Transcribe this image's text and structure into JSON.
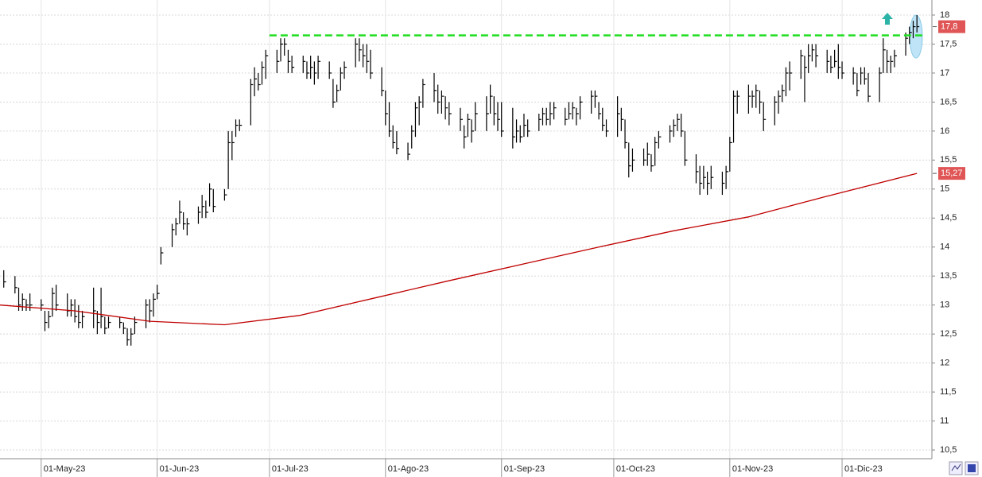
{
  "chart_data": {
    "type": "ohlc",
    "xlim": [
      110,
      359
    ],
    "ylim": [
      10.35,
      18.26
    ],
    "xticks": [
      {
        "value": 121,
        "label": "01-May-23"
      },
      {
        "value": 152,
        "label": "01-Jun-23"
      },
      {
        "value": 182,
        "label": "01-Jul-23"
      },
      {
        "value": 213,
        "label": "01-Ago-23"
      },
      {
        "value": 244,
        "label": "01-Sep-23"
      },
      {
        "value": 274,
        "label": "01-Oct-23"
      },
      {
        "value": 305,
        "label": "01-Nov-23"
      },
      {
        "value": 335,
        "label": "01-Dic-23"
      }
    ],
    "yticks": [
      {
        "value": 10.5,
        "label": "10,5"
      },
      11,
      {
        "value": 11.5,
        "label": "11,5"
      },
      12,
      {
        "value": 12.5,
        "label": "12,5"
      },
      13,
      {
        "value": 13.5,
        "label": "13,5"
      },
      14,
      {
        "value": 14.5,
        "label": "14,5"
      },
      15,
      {
        "value": 15.5,
        "label": "15,5"
      },
      16,
      {
        "value": 16.5,
        "label": "16,5"
      },
      17,
      {
        "value": 17.5,
        "label": "17,5"
      },
      18
    ],
    "grid": true,
    "ohlc": {
      "color": "#000000",
      "x": [
        111,
        114,
        115,
        116,
        117,
        118,
        121,
        122,
        123,
        124,
        125,
        128,
        129,
        130,
        131,
        132,
        135,
        136,
        137,
        138,
        139,
        142,
        143,
        144,
        145,
        146,
        149,
        150,
        151,
        152,
        153,
        156,
        157,
        158,
        159,
        160,
        163,
        164,
        165,
        166,
        167,
        170,
        171,
        172,
        173,
        174,
        177,
        178,
        179,
        180,
        181,
        184,
        185,
        186,
        187,
        188,
        191,
        192,
        193,
        194,
        195,
        198,
        199,
        200,
        201,
        202,
        205,
        206,
        207,
        208,
        209,
        212,
        213,
        214,
        215,
        216,
        219,
        220,
        221,
        222,
        223,
        226,
        227,
        228,
        229,
        230,
        233,
        234,
        235,
        236,
        237,
        240,
        241,
        242,
        243,
        244,
        247,
        248,
        249,
        250,
        251,
        254,
        255,
        256,
        257,
        258,
        261,
        262,
        263,
        264,
        265,
        268,
        269,
        270,
        271,
        272,
        275,
        276,
        277,
        278,
        279,
        282,
        283,
        284,
        285,
        286,
        289,
        290,
        291,
        292,
        293,
        296,
        297,
        298,
        299,
        300,
        303,
        304,
        305,
        306,
        307,
        310,
        311,
        312,
        313,
        314,
        317,
        318,
        319,
        320,
        321,
        324,
        325,
        326,
        327,
        328,
        331,
        332,
        333,
        334,
        335,
        338,
        339,
        340,
        341,
        342,
        345,
        346,
        347,
        348,
        349,
        352,
        353,
        354,
        355
      ],
      "high": [
        13.6,
        13.5,
        13.3,
        13.2,
        13.1,
        13.2,
        13.1,
        12.9,
        12.9,
        13.3,
        13.35,
        13.2,
        13.1,
        13.1,
        13.0,
        12.9,
        13.3,
        12.9,
        13.3,
        12.8,
        12.8,
        12.8,
        12.7,
        12.6,
        12.6,
        12.8,
        13.1,
        13.1,
        13.2,
        13.35,
        14.0,
        14.4,
        14.5,
        14.8,
        14.6,
        14.5,
        14.7,
        14.9,
        14.8,
        15.1,
        15.0,
        15.0,
        16.0,
        16.0,
        16.2,
        16.2,
        16.9,
        17.1,
        17.0,
        17.2,
        17.4,
        17.4,
        17.6,
        17.6,
        17.4,
        17.3,
        17.3,
        17.2,
        17.3,
        17.2,
        17.3,
        17.2,
        16.9,
        16.8,
        17.1,
        17.2,
        17.6,
        17.6,
        17.5,
        17.5,
        17.4,
        17.1,
        16.7,
        16.5,
        16.1,
        16.0,
        15.8,
        16.1,
        16.5,
        16.6,
        16.9,
        17.0,
        16.8,
        16.7,
        16.6,
        16.5,
        16.4,
        16.1,
        16.3,
        16.2,
        16.5,
        16.6,
        16.8,
        16.6,
        16.5,
        16.5,
        16.4,
        16.2,
        16.1,
        16.3,
        16.2,
        16.3,
        16.4,
        16.4,
        16.5,
        16.5,
        16.4,
        16.5,
        16.5,
        16.4,
        16.6,
        16.7,
        16.7,
        16.5,
        16.4,
        16.2,
        16.6,
        16.4,
        16.2,
        15.8,
        15.7,
        15.7,
        15.8,
        15.6,
        15.9,
        16.0,
        16.1,
        16.2,
        16.3,
        16.3,
        16.0,
        15.6,
        15.4,
        15.4,
        15.3,
        15.4,
        15.3,
        15.4,
        15.9,
        16.7,
        16.7,
        16.8,
        16.7,
        16.8,
        16.7,
        16.5,
        16.6,
        16.7,
        16.8,
        17.1,
        17.2,
        17.4,
        17.3,
        17.5,
        17.5,
        17.5,
        17.4,
        17.3,
        17.4,
        17.5,
        17.2,
        17.1,
        17.0,
        17.1,
        17.1,
        17.0,
        17.1,
        17.6,
        17.4,
        17.3,
        17.4,
        17.7,
        17.8,
        17.9,
        18.0
      ],
      "low": [
        13.3,
        13.2,
        12.9,
        12.9,
        12.9,
        12.9,
        12.9,
        12.55,
        12.6,
        12.8,
        12.9,
        12.8,
        12.8,
        12.7,
        12.6,
        12.6,
        12.6,
        12.5,
        12.6,
        12.5,
        12.6,
        12.6,
        12.5,
        12.3,
        12.3,
        12.5,
        12.6,
        12.7,
        12.8,
        13.1,
        13.7,
        14.0,
        14.2,
        14.4,
        14.3,
        14.2,
        14.4,
        14.5,
        14.5,
        14.7,
        14.6,
        14.8,
        15.0,
        15.5,
        15.9,
        16.0,
        16.1,
        16.6,
        16.7,
        16.8,
        16.9,
        17.0,
        17.2,
        17.3,
        17.0,
        17.0,
        17.0,
        16.9,
        16.9,
        16.8,
        16.9,
        16.9,
        16.4,
        16.5,
        16.7,
        16.9,
        17.1,
        17.2,
        17.1,
        17.0,
        16.9,
        16.6,
        16.1,
        15.9,
        15.7,
        15.6,
        15.5,
        15.7,
        15.9,
        16.1,
        16.4,
        16.5,
        16.3,
        16.3,
        16.2,
        16.1,
        16.0,
        15.7,
        15.9,
        15.8,
        16.0,
        16.0,
        16.3,
        16.1,
        16.0,
        15.9,
        15.7,
        15.8,
        15.8,
        15.9,
        15.9,
        16.0,
        16.1,
        16.1,
        16.1,
        16.2,
        16.1,
        16.2,
        16.2,
        16.1,
        16.2,
        16.3,
        16.4,
        16.2,
        16.0,
        15.9,
        15.9,
        16.0,
        15.7,
        15.2,
        15.3,
        15.4,
        15.4,
        15.3,
        15.4,
        15.7,
        15.8,
        15.9,
        16.0,
        15.9,
        15.4,
        15.1,
        14.9,
        15.0,
        14.9,
        15.0,
        14.9,
        15.0,
        15.3,
        15.8,
        16.3,
        16.3,
        16.4,
        16.4,
        16.3,
        16.0,
        16.1,
        16.3,
        16.5,
        16.6,
        16.7,
        16.9,
        16.5,
        17.0,
        17.2,
        17.1,
        17.0,
        17.0,
        17.1,
        16.9,
        16.9,
        16.8,
        16.6,
        16.8,
        16.8,
        16.5,
        16.5,
        17.0,
        17.0,
        17.0,
        17.1,
        17.3,
        17.5,
        17.6,
        17.7
      ],
      "close": [
        13.4,
        13.3,
        13.0,
        13.1,
        13.0,
        13.0,
        13.0,
        12.7,
        12.8,
        13.2,
        13.0,
        12.9,
        13.0,
        12.8,
        12.7,
        12.8,
        12.9,
        12.7,
        12.8,
        12.6,
        12.7,
        12.7,
        12.6,
        12.4,
        12.5,
        12.7,
        13.0,
        12.9,
        13.1,
        13.2,
        13.9,
        14.3,
        14.4,
        14.6,
        14.4,
        14.4,
        14.6,
        14.7,
        14.6,
        15.0,
        14.7,
        14.9,
        15.8,
        15.8,
        16.1,
        16.1,
        16.8,
        16.9,
        16.8,
        17.1,
        17.3,
        17.2,
        17.5,
        17.5,
        17.2,
        17.1,
        17.2,
        17.0,
        17.1,
        17.0,
        17.2,
        17.0,
        16.5,
        16.7,
        17.0,
        17.1,
        17.5,
        17.4,
        17.3,
        17.2,
        17.0,
        16.7,
        16.3,
        16.0,
        15.8,
        15.7,
        15.6,
        16.0,
        16.4,
        16.5,
        16.8,
        16.7,
        16.5,
        16.6,
        16.4,
        16.3,
        16.2,
        15.9,
        16.2,
        16.0,
        16.3,
        16.3,
        16.6,
        16.3,
        16.2,
        16.0,
        15.9,
        16.0,
        15.9,
        16.1,
        16.0,
        16.2,
        16.3,
        16.2,
        16.3,
        16.4,
        16.2,
        16.3,
        16.4,
        16.3,
        16.5,
        16.6,
        16.6,
        16.3,
        16.1,
        16.0,
        16.3,
        16.2,
        15.8,
        15.4,
        15.5,
        15.5,
        15.6,
        15.4,
        15.8,
        15.9,
        16.0,
        16.1,
        16.2,
        16.0,
        15.5,
        15.3,
        15.1,
        15.2,
        15.1,
        15.2,
        15.1,
        15.3,
        15.8,
        16.6,
        16.6,
        16.6,
        16.6,
        16.7,
        16.5,
        16.2,
        16.5,
        16.6,
        16.7,
        17.0,
        17.0,
        17.3,
        17.1,
        17.3,
        17.4,
        17.3,
        17.2,
        17.1,
        17.2,
        17.1,
        17.0,
        17.0,
        16.7,
        17.0,
        16.9,
        16.6,
        17.0,
        17.4,
        17.2,
        17.2,
        17.3,
        17.6,
        17.7,
        17.8,
        17.8
      ]
    },
    "ma": {
      "color": "#c00000",
      "x": [
        110,
        130,
        150,
        170,
        190,
        210,
        230,
        250,
        270,
        290,
        310,
        330,
        355
      ],
      "values": [
        13.0,
        12.9,
        12.72,
        12.66,
        12.82,
        13.12,
        13.42,
        13.71,
        14.0,
        14.28,
        14.52,
        14.86,
        15.27
      ]
    },
    "hlines": [
      {
        "value": 17.65,
        "color": "#22dd22",
        "x": [
          182,
          357
        ]
      }
    ],
    "last_labels": [
      {
        "value": 17.8,
        "label": "17,8",
        "color": "#e05555"
      },
      {
        "value": 15.27,
        "label": "15,27",
        "color": "#e05555"
      }
    ]
  }
}
